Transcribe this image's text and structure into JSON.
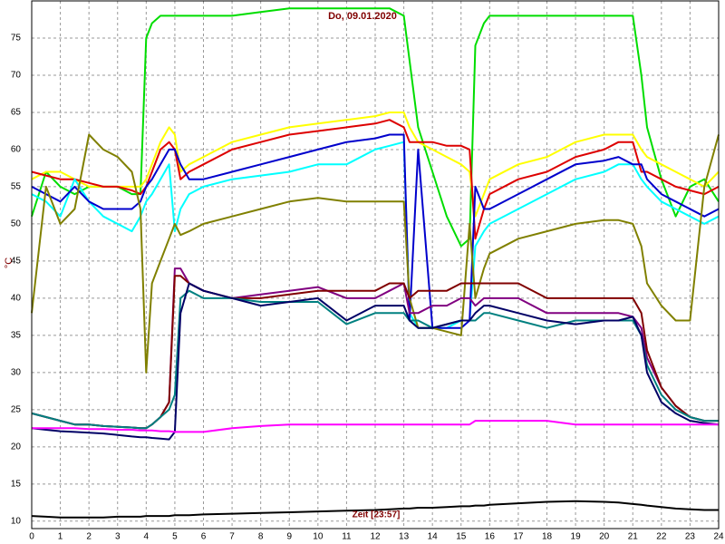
{
  "chart_data": {
    "type": "line",
    "title": "Do, 09.01.2020",
    "xlabel": "Zeit [23:57]",
    "ylabel": "°C",
    "x": [
      0,
      0.5,
      1,
      1.5,
      2,
      2.5,
      3,
      3.5,
      3.8,
      4,
      4.2,
      4.5,
      4.8,
      5,
      5.2,
      5.5,
      6,
      7,
      8,
      9,
      10,
      11,
      12,
      12.5,
      13,
      13.2,
      13.5,
      14,
      14.5,
      15,
      15.3,
      15.5,
      15.8,
      16,
      17,
      18,
      19,
      20,
      20.5,
      21,
      21.3,
      21.5,
      22,
      22.5,
      23,
      23.5,
      24
    ],
    "xlim": [
      0,
      24
    ],
    "xticks": [
      0,
      1,
      2,
      3,
      4,
      5,
      6,
      7,
      8,
      9,
      10,
      11,
      12,
      13,
      14,
      15,
      16,
      17,
      18,
      19,
      20,
      21,
      22,
      23,
      24
    ],
    "ylim": [
      9,
      80
    ],
    "yticks": [
      10,
      15,
      20,
      25,
      30,
      35,
      40,
      45,
      50,
      55,
      60,
      65,
      70,
      75
    ],
    "grid": true,
    "series": [
      {
        "color": "#00dd00",
        "values": [
          51,
          57,
          55,
          54,
          55,
          55,
          55,
          54,
          54,
          75,
          77,
          78,
          78,
          78,
          78,
          78,
          78,
          78,
          78.5,
          79,
          79,
          79,
          79,
          79,
          78,
          72,
          63,
          57,
          51,
          47,
          48,
          74,
          77,
          78,
          78,
          78,
          78,
          78,
          78,
          78,
          70,
          63,
          56,
          51,
          55,
          56,
          53
        ]
      },
      {
        "color": "#ffff00",
        "values": [
          56,
          57,
          57,
          56,
          55,
          55,
          55,
          55,
          55,
          56,
          58,
          61,
          63,
          62,
          57,
          58,
          59,
          61,
          62,
          63,
          63.5,
          64,
          64.5,
          65,
          65,
          63,
          61,
          60,
          59,
          58,
          57,
          51,
          54,
          56,
          58,
          59,
          61,
          62,
          62,
          62,
          60,
          59,
          58,
          57,
          56,
          55,
          57
        ]
      },
      {
        "color": "#dd0000",
        "values": [
          57,
          56.5,
          56,
          56,
          55.5,
          55,
          55,
          54.5,
          54,
          55,
          57,
          60,
          61,
          60,
          56,
          57,
          58,
          60,
          61,
          62,
          62.5,
          63,
          63.5,
          64,
          63,
          61,
          61,
          61,
          60.5,
          60.5,
          60,
          48,
          52,
          54,
          56,
          57,
          59,
          60,
          61,
          61,
          57,
          57,
          56,
          55,
          54.5,
          54,
          55
        ]
      },
      {
        "color": "#00ffff",
        "values": [
          54,
          53,
          51,
          56,
          53,
          51,
          50,
          49,
          51,
          53,
          54,
          56,
          58,
          49,
          52,
          54,
          55,
          56,
          56.5,
          57,
          58,
          58,
          60,
          60.5,
          61,
          38,
          36,
          36,
          36,
          37,
          37,
          47,
          49,
          50,
          52,
          54,
          56,
          57,
          58,
          58,
          56,
          55,
          53,
          52,
          51,
          50,
          51
        ]
      },
      {
        "color": "#0000cc",
        "values": [
          55,
          54,
          53,
          55,
          53,
          52,
          52,
          52,
          53,
          55,
          56,
          58,
          60,
          60,
          58,
          56,
          56,
          57,
          58,
          59,
          60,
          61,
          61.5,
          62,
          62,
          37,
          60,
          36,
          36,
          36,
          37,
          55,
          52,
          52,
          54,
          56,
          58,
          58.5,
          59,
          58,
          58,
          56,
          54,
          53,
          52,
          51,
          52
        ]
      },
      {
        "color": "#808000",
        "values": [
          38,
          55,
          50,
          52,
          62,
          60,
          59,
          57,
          52,
          30,
          42,
          45,
          48,
          50,
          48.5,
          49,
          50,
          51,
          52,
          53,
          53.5,
          53,
          53,
          53,
          53,
          40,
          36,
          36,
          35.5,
          35,
          50,
          40,
          44,
          46,
          48,
          49,
          50,
          50.5,
          50.5,
          50,
          47,
          42,
          39,
          37,
          37,
          55,
          62
        ]
      },
      {
        "color": "#800080",
        "values": [
          24.5,
          24,
          23.5,
          23,
          23,
          22.8,
          22.7,
          22.6,
          22.5,
          22.5,
          23,
          24,
          26,
          44,
          44,
          42,
          41,
          40,
          40.5,
          41,
          41.5,
          40,
          40,
          41,
          42,
          38,
          38,
          39,
          39,
          40,
          40,
          39,
          40,
          40,
          40,
          38,
          38,
          38,
          38,
          37.5,
          36,
          32,
          28,
          25.5,
          24,
          23.5,
          23.5
        ]
      },
      {
        "color": "#800000",
        "values": [
          24.5,
          24,
          23.5,
          23,
          23,
          22.8,
          22.7,
          22.6,
          22.5,
          22.5,
          23,
          24,
          26,
          43,
          43,
          42,
          41,
          40,
          40,
          40.5,
          41,
          41,
          41,
          42,
          42,
          40,
          41,
          41,
          41,
          42,
          42,
          42,
          42,
          42,
          42,
          40,
          40,
          40,
          40,
          40,
          38,
          33,
          28,
          25.5,
          24,
          23.5,
          23.5
        ]
      },
      {
        "color": "#008080",
        "values": [
          24.5,
          24,
          23.5,
          23,
          23,
          22.8,
          22.7,
          22.6,
          22.5,
          22.5,
          23,
          24,
          25,
          27,
          40,
          41,
          40,
          40,
          39.5,
          39.5,
          39.5,
          36.5,
          38,
          38,
          38,
          37,
          37,
          36,
          36.5,
          37,
          37,
          37,
          38,
          38,
          37,
          36,
          37,
          37,
          37,
          37,
          35,
          31,
          27,
          25,
          24,
          23.5,
          23.5
        ]
      },
      {
        "color": "#000066",
        "values": [
          22.5,
          22.3,
          22.1,
          22,
          21.9,
          21.8,
          21.6,
          21.4,
          21.3,
          21.3,
          21.2,
          21.1,
          21,
          22,
          38,
          42,
          41,
          40,
          39,
          39.5,
          40,
          37,
          39,
          39,
          39,
          37,
          36,
          36,
          36.5,
          37,
          37,
          38,
          39,
          39,
          38,
          37,
          36.5,
          37,
          37,
          37.5,
          35,
          30,
          26,
          24.5,
          23.5,
          23.2,
          23
        ]
      },
      {
        "color": "#ff00ff",
        "values": [
          22.5,
          22.5,
          22.5,
          22.5,
          22.4,
          22.4,
          22.3,
          22.3,
          22.2,
          22.2,
          22.2,
          22.1,
          22.1,
          22,
          22,
          22,
          22,
          22.5,
          22.8,
          23,
          23,
          23,
          23,
          23,
          23,
          23,
          23,
          23,
          23,
          23,
          23,
          23.5,
          23.5,
          23.5,
          23.5,
          23.5,
          23,
          23,
          23,
          23,
          23,
          23,
          23,
          23,
          23,
          23,
          23
        ]
      },
      {
        "color": "#000000",
        "values": [
          10.7,
          10.6,
          10.5,
          10.5,
          10.5,
          10.5,
          10.6,
          10.6,
          10.6,
          10.7,
          10.7,
          10.7,
          10.7,
          10.8,
          10.8,
          10.8,
          10.9,
          11,
          11.1,
          11.2,
          11.3,
          11.4,
          11.5,
          11.6,
          11.7,
          11.7,
          11.8,
          11.8,
          11.9,
          12,
          12,
          12.1,
          12.1,
          12.2,
          12.4,
          12.6,
          12.7,
          12.6,
          12.5,
          12.3,
          12.2,
          12.1,
          11.9,
          11.7,
          11.6,
          11.5,
          11.5
        ]
      }
    ]
  }
}
